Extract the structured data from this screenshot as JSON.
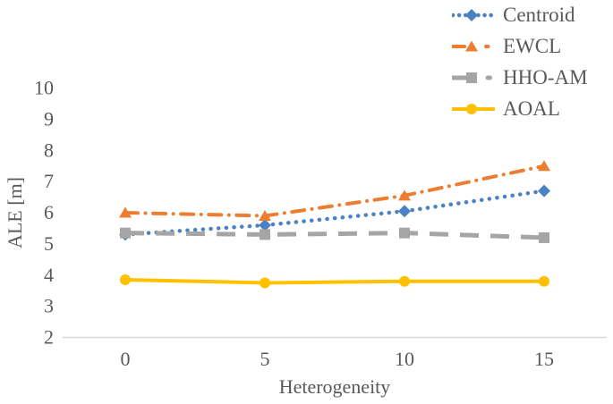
{
  "chart_data": {
    "type": "line",
    "title": "",
    "xlabel": "Heterogeneity",
    "ylabel": "ALE [m]",
    "x": [
      0,
      5,
      10,
      15
    ],
    "ylim": [
      2,
      10
    ],
    "yticks": [
      2,
      3,
      4,
      5,
      6,
      7,
      8,
      9,
      10
    ],
    "grid": false,
    "legend_position": "top-right",
    "axis_color": "#d9d9d9",
    "text_color": "#595959",
    "series": [
      {
        "name": "Centroid",
        "values": [
          5.3,
          5.6,
          6.05,
          6.7
        ],
        "color": "#4a82c4",
        "line_style": "dotted",
        "marker": "diamond"
      },
      {
        "name": "EWCL",
        "values": [
          6.0,
          5.9,
          6.55,
          7.5
        ],
        "color": "#ED7D31",
        "line_style": "dash-dot",
        "marker": "triangle"
      },
      {
        "name": "HHO-AM",
        "values": [
          5.35,
          5.3,
          5.35,
          5.2
        ],
        "color": "#A5A5A5",
        "line_style": "dashed",
        "marker": "square"
      },
      {
        "name": "AOAL",
        "values": [
          3.85,
          3.75,
          3.8,
          3.8
        ],
        "color": "#FFC000",
        "line_style": "solid",
        "marker": "circle"
      }
    ]
  }
}
